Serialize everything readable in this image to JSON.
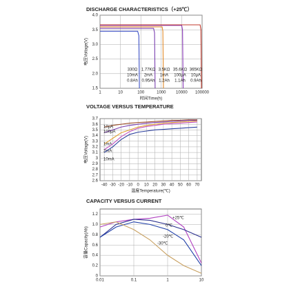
{
  "chart_data": [
    {
      "type": "line",
      "title": "DISCHARGE CHARACTERISTICS（+25℃）",
      "x_label": "时间Time(h)",
      "y_label": "电压Voltage(V)",
      "xscale": "log",
      "xlim": [
        1,
        100000
      ],
      "xticks": [
        1,
        10,
        100,
        1000,
        10000,
        100000
      ],
      "ylim": [
        1.5,
        4.0
      ],
      "yticks": [
        {
          "value": 1.5,
          "label": "1.5"
        },
        {
          "value": 2.0,
          "label": "2.0"
        },
        {
          "value": 2.5,
          "label": "2.5"
        },
        {
          "value": 3.0,
          "label": "3.0"
        },
        {
          "value": 3.5,
          "label": "3.5"
        },
        {
          "value": 4.0,
          "label": "4.0"
        }
      ],
      "grid": true,
      "series": [
        {
          "name": "330Ω",
          "current": "10mA",
          "capacity": "0.8Ah",
          "color": "#3b4fc4",
          "x": [
            1,
            70,
            80,
            85
          ],
          "values": [
            3.45,
            3.45,
            3.3,
            1.5
          ]
        },
        {
          "name": "1.77KΩ",
          "current": "2mA",
          "capacity": "0.95Ah",
          "color": "#7a3fb0",
          "x": [
            1,
            420,
            470,
            500
          ],
          "values": [
            3.55,
            3.55,
            3.4,
            1.5
          ]
        },
        {
          "name": "3.5KΩ",
          "current": "1mA",
          "capacity": "1.2Ah",
          "color": "#e08a2a",
          "x": [
            1,
            1100,
            1200,
            1280
          ],
          "values": [
            3.6,
            3.6,
            3.45,
            1.5
          ]
        },
        {
          "name": "35.6KΩ",
          "current": "100μA",
          "capacity": "1.1Ah",
          "color": "#8a3ab9",
          "x": [
            1,
            10000,
            11000,
            11800
          ],
          "values": [
            3.65,
            3.65,
            3.5,
            1.5
          ]
        },
        {
          "name": "365KΩ",
          "current": "10μA",
          "capacity": "0.9Ah",
          "color": "#c0392b",
          "x": [
            1,
            80000,
            88000,
            93000
          ],
          "values": [
            3.67,
            3.67,
            3.5,
            1.5
          ]
        }
      ]
    },
    {
      "type": "line",
      "title": "VOLTAGE VERSUS TEMPERATURE",
      "x_label": "温度Temperature(℃)",
      "y_label": "电压Voltage(V)",
      "xlim": [
        -45,
        75
      ],
      "xticks": [
        -40,
        -30,
        -20,
        -10,
        0,
        10,
        20,
        30,
        40,
        50,
        60,
        70
      ],
      "ylim": [
        2.6,
        3.7
      ],
      "yticks": [
        2.6,
        2.7,
        2.8,
        2.9,
        3,
        3.1,
        3.2,
        3.3,
        3.4,
        3.5,
        3.6,
        3.7
      ],
      "grid": true,
      "x": [
        -40,
        -30,
        -20,
        -10,
        0,
        10,
        20,
        30,
        40,
        50,
        60,
        70
      ],
      "series": [
        {
          "name": "10μA",
          "color": "#a0522d",
          "values": [
            3.55,
            3.58,
            3.6,
            3.62,
            3.63,
            3.64,
            3.65,
            3.66,
            3.67,
            3.67,
            3.68,
            3.68
          ]
        },
        {
          "name": "100μA",
          "color": "#7a3fb0",
          "values": [
            3.45,
            3.5,
            3.55,
            3.58,
            3.6,
            3.62,
            3.63,
            3.64,
            3.65,
            3.66,
            3.67,
            3.67
          ]
        },
        {
          "name": "1mA",
          "color": "#e0a030",
          "values": [
            3.25,
            3.35,
            3.45,
            3.5,
            3.55,
            3.58,
            3.6,
            3.62,
            3.63,
            3.64,
            3.65,
            3.66
          ]
        },
        {
          "name": "2mA",
          "color": "#c050c0",
          "values": [
            3.15,
            3.25,
            3.38,
            3.47,
            3.53,
            3.56,
            3.58,
            3.6,
            3.61,
            3.62,
            3.63,
            3.64
          ]
        },
        {
          "name": "10mA",
          "color": "#2a3f9e",
          "values": [
            3.1,
            3.2,
            3.33,
            3.42,
            3.46,
            3.48,
            3.5,
            3.51,
            3.52,
            3.53,
            3.54,
            3.55
          ]
        }
      ]
    },
    {
      "type": "line",
      "title": "CAPACITY VERSUS CURRENT",
      "y_label": "容量Capacity(Ah)",
      "xscale": "log",
      "xlim": [
        0.01,
        10
      ],
      "xticks": [
        0.01,
        0.1,
        1,
        10
      ],
      "ylim": [
        0,
        1.3
      ],
      "yticks": [
        0,
        0.2,
        0.4,
        0.6,
        0.8,
        {
          "value": 1.0,
          "label": "1.0"
        },
        1.2
      ],
      "grid": true,
      "x": [
        0.01,
        0.03,
        0.1,
        0.3,
        1,
        3,
        10
      ],
      "series": [
        {
          "name": "+25℃",
          "color": "#b040c0",
          "values": [
            0.95,
            1.05,
            1.1,
            1.12,
            1.18,
            0.95,
            0.25
          ]
        },
        {
          "name": "0℃",
          "color": "#2a2f8e",
          "values": [
            0.75,
            1.0,
            1.1,
            1.08,
            1.0,
            0.9,
            0.75
          ]
        },
        {
          "name": "-20℃",
          "color": "#1f3fa8",
          "values": [
            0.75,
            0.95,
            1.05,
            1.0,
            0.9,
            0.7,
            0.2
          ]
        },
        {
          "name": "-30℃",
          "color": "#c8a060",
          "values": [
            1.0,
            1.05,
            0.9,
            0.7,
            0.4,
            0.2,
            0.05
          ]
        }
      ]
    }
  ]
}
